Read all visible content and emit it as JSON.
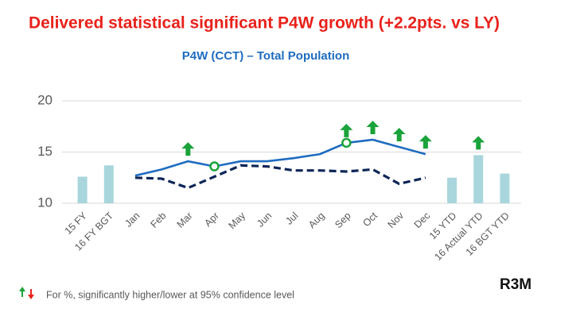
{
  "chart_data": {
    "type": "combo",
    "title": "Delivered statistical significant P4W  growth (+2.2pts. vs LY)",
    "subtitle": "P4W (CCT) – Total Population",
    "categories": [
      "15 FY",
      "16 FY BGT",
      "Jan",
      "Feb",
      "Mar",
      "Apr",
      "May",
      "Jun",
      "Jul",
      "Aug",
      "Sep",
      "Oct",
      "Nov",
      "Dec",
      "15 YTD",
      "16 Actual YTD",
      "16 BGT YTD"
    ],
    "bars": {
      "color": "#a8d6dc",
      "values": [
        12.6,
        13.7,
        null,
        null,
        null,
        null,
        null,
        null,
        null,
        null,
        null,
        null,
        null,
        null,
        12.5,
        14.7,
        12.9
      ]
    },
    "series": [
      {
        "color": "#1f6cc0",
        "dashed": false,
        "values": [
          null,
          null,
          12.7,
          13.3,
          14.1,
          13.6,
          14.1,
          14.1,
          14.4,
          14.8,
          15.9,
          16.2,
          15.5,
          14.8,
          null,
          null,
          null
        ]
      },
      {
        "color": "#0e2658",
        "dashed": true,
        "values": [
          null,
          null,
          12.5,
          12.4,
          11.5,
          12.6,
          13.7,
          13.6,
          13.2,
          13.2,
          13.1,
          13.3,
          11.9,
          12.5,
          null,
          null,
          null
        ]
      }
    ],
    "significant_up": [
      false,
      false,
      false,
      false,
      true,
      false,
      false,
      false,
      false,
      false,
      true,
      true,
      true,
      true,
      false,
      true,
      false
    ],
    "circled": [
      false,
      false,
      false,
      false,
      false,
      true,
      false,
      false,
      false,
      false,
      true,
      false,
      false,
      false,
      false,
      false,
      false
    ],
    "ylim": [
      10,
      20
    ],
    "yticks": [
      10,
      15,
      20
    ],
    "grid": true,
    "footnote": "For %, significantly higher/lower at 95% confidence level",
    "brand": "R3M"
  }
}
